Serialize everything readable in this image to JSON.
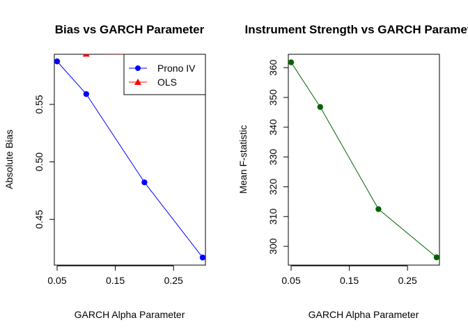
{
  "chart_data": [
    {
      "type": "line",
      "title": "Bias vs GARCH Parameter",
      "xlabel": "GARCH Alpha Parameter",
      "ylabel": "Absolute Bias",
      "x": [
        0.05,
        0.1,
        0.2,
        0.3
      ],
      "xlim": [
        0.0452,
        0.3048
      ],
      "ylim": [
        0.4102,
        0.5936
      ],
      "xticks": [
        0.05,
        0.15,
        0.25
      ],
      "xtick_labels": [
        "0.05",
        "0.15",
        "0.25"
      ],
      "yticks": [
        0.45,
        0.5,
        0.55
      ],
      "ytick_labels": [
        "0.45",
        "0.50",
        "0.55"
      ],
      "grid": false,
      "legend_position": "top-right",
      "series": [
        {
          "name": "Prono IV",
          "values": [
            0.5874,
            0.559,
            0.4822,
            0.4168
          ],
          "color": "#0000ff",
          "marker": "circle"
        },
        {
          "name": "OLS",
          "values": [
            0.607,
            0.594,
            0.5935,
            0.5932
          ],
          "color": "#ff0000",
          "marker": "triangle"
        }
      ]
    },
    {
      "type": "line",
      "title": "Instrument Strength vs GARCH Parameter",
      "xlabel": "GARCH Alpha Parameter",
      "ylabel": "Mean F-statistic",
      "x": [
        0.05,
        0.1,
        0.2,
        0.3
      ],
      "xlim": [
        0.0452,
        0.3048
      ],
      "ylim": [
        293.7,
        364.5
      ],
      "xticks": [
        0.05,
        0.15,
        0.25
      ],
      "xtick_labels": [
        "0.05",
        "0.15",
        "0.25"
      ],
      "yticks": [
        300,
        310,
        320,
        330,
        340,
        350,
        360
      ],
      "ytick_labels": [
        "300",
        "310",
        "320",
        "330",
        "340",
        "350",
        "360"
      ],
      "grid": false,
      "series": [
        {
          "values": [
            361.8,
            346.8,
            312.5,
            296.3
          ],
          "color": "#006400",
          "marker": "circle"
        }
      ]
    }
  ]
}
